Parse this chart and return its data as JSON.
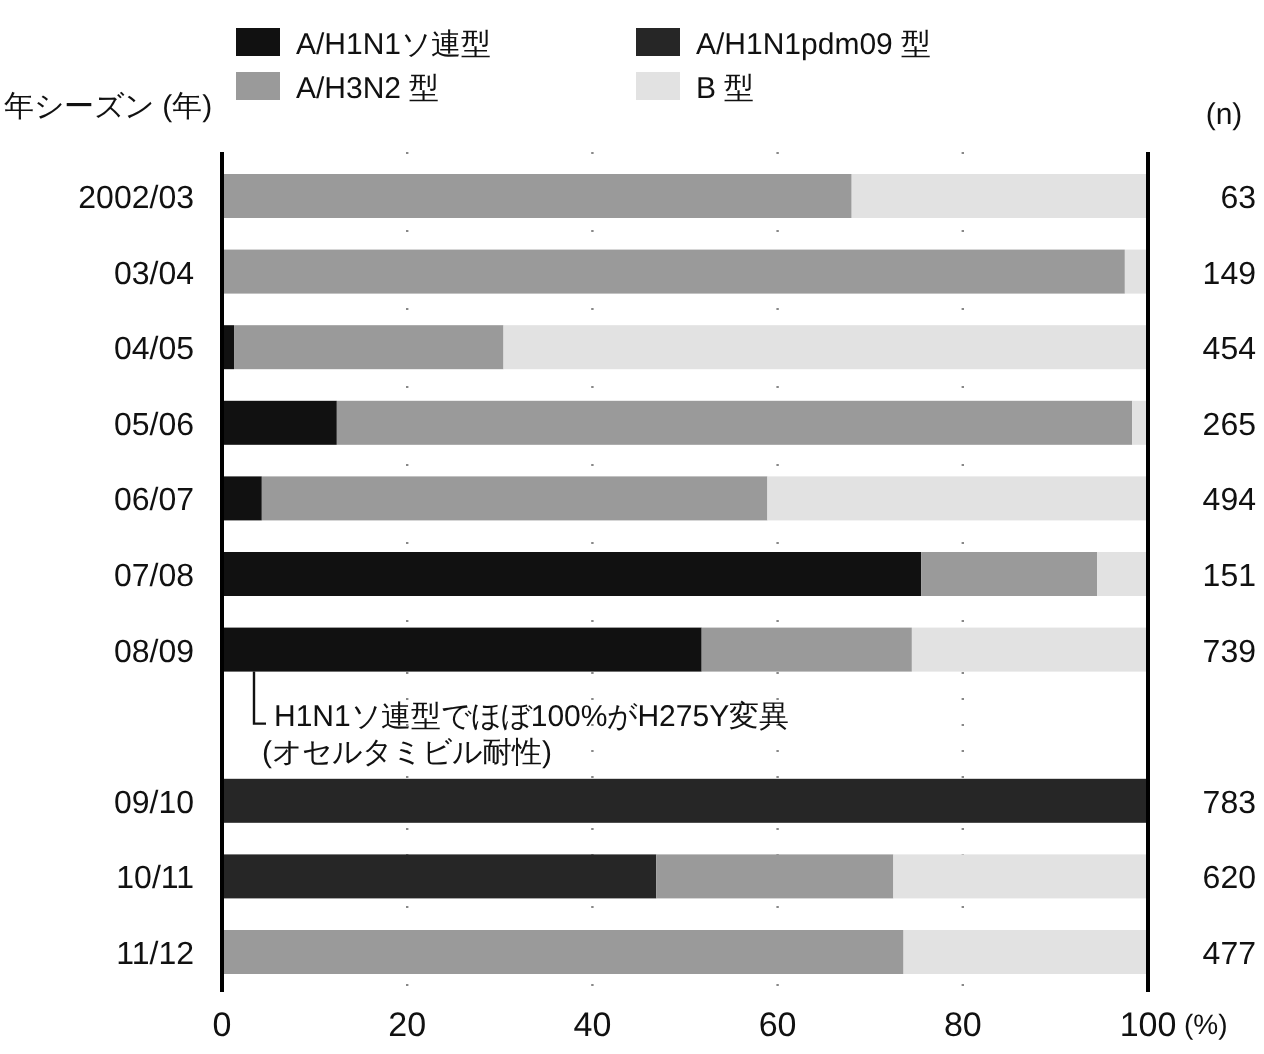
{
  "chart_data": {
    "type": "bar",
    "orientation": "horizontal",
    "stacked": true,
    "ylabel": "年シーズン (年)",
    "xlabel": "(%)",
    "categories": [
      "2002/03",
      "03/04",
      "04/05",
      "05/06",
      "06/07",
      "07/08",
      "08/09",
      null,
      "09/10",
      "10/11",
      "11/12"
    ],
    "series": [
      {
        "name": "A/H1N1ソ連型",
        "color": "#111111",
        "values": [
          null,
          null,
          1.3,
          12.4,
          4.3,
          75.5,
          51.8,
          null,
          null,
          null,
          null
        ]
      },
      {
        "name": "A/H1N1pdm09 型",
        "color": "#262626",
        "values": [
          null,
          null,
          null,
          null,
          null,
          null,
          null,
          null,
          100,
          46.9,
          null
        ]
      },
      {
        "name": "A/H3N2 型",
        "color": "#9a9a9a",
        "values": [
          68,
          97.5,
          29.1,
          85.9,
          54.6,
          19,
          22.7,
          null,
          null,
          25.6,
          73.6
        ]
      },
      {
        "name": "B 型",
        "color": "#e2e2e2",
        "values": [
          32,
          2.5,
          69.6,
          1.7,
          41.1,
          5.5,
          25.5,
          null,
          null,
          27.5,
          26.4
        ]
      }
    ],
    "xlim": [
      0,
      100
    ],
    "xticks": [
      0,
      20,
      40,
      60,
      80,
      100
    ],
    "grid": "x",
    "legend": "top",
    "annotations": [
      "(n)",
      "63",
      "149",
      "454",
      "265",
      "494",
      "151",
      "739",
      "783",
      "620",
      "477",
      {
        "text": "H1N1ソ連型でほぼ100%がH275Y変異\n(オセルタミビル耐性)",
        "x": 0,
        "y": "08/09"
      }
    ]
  }
}
